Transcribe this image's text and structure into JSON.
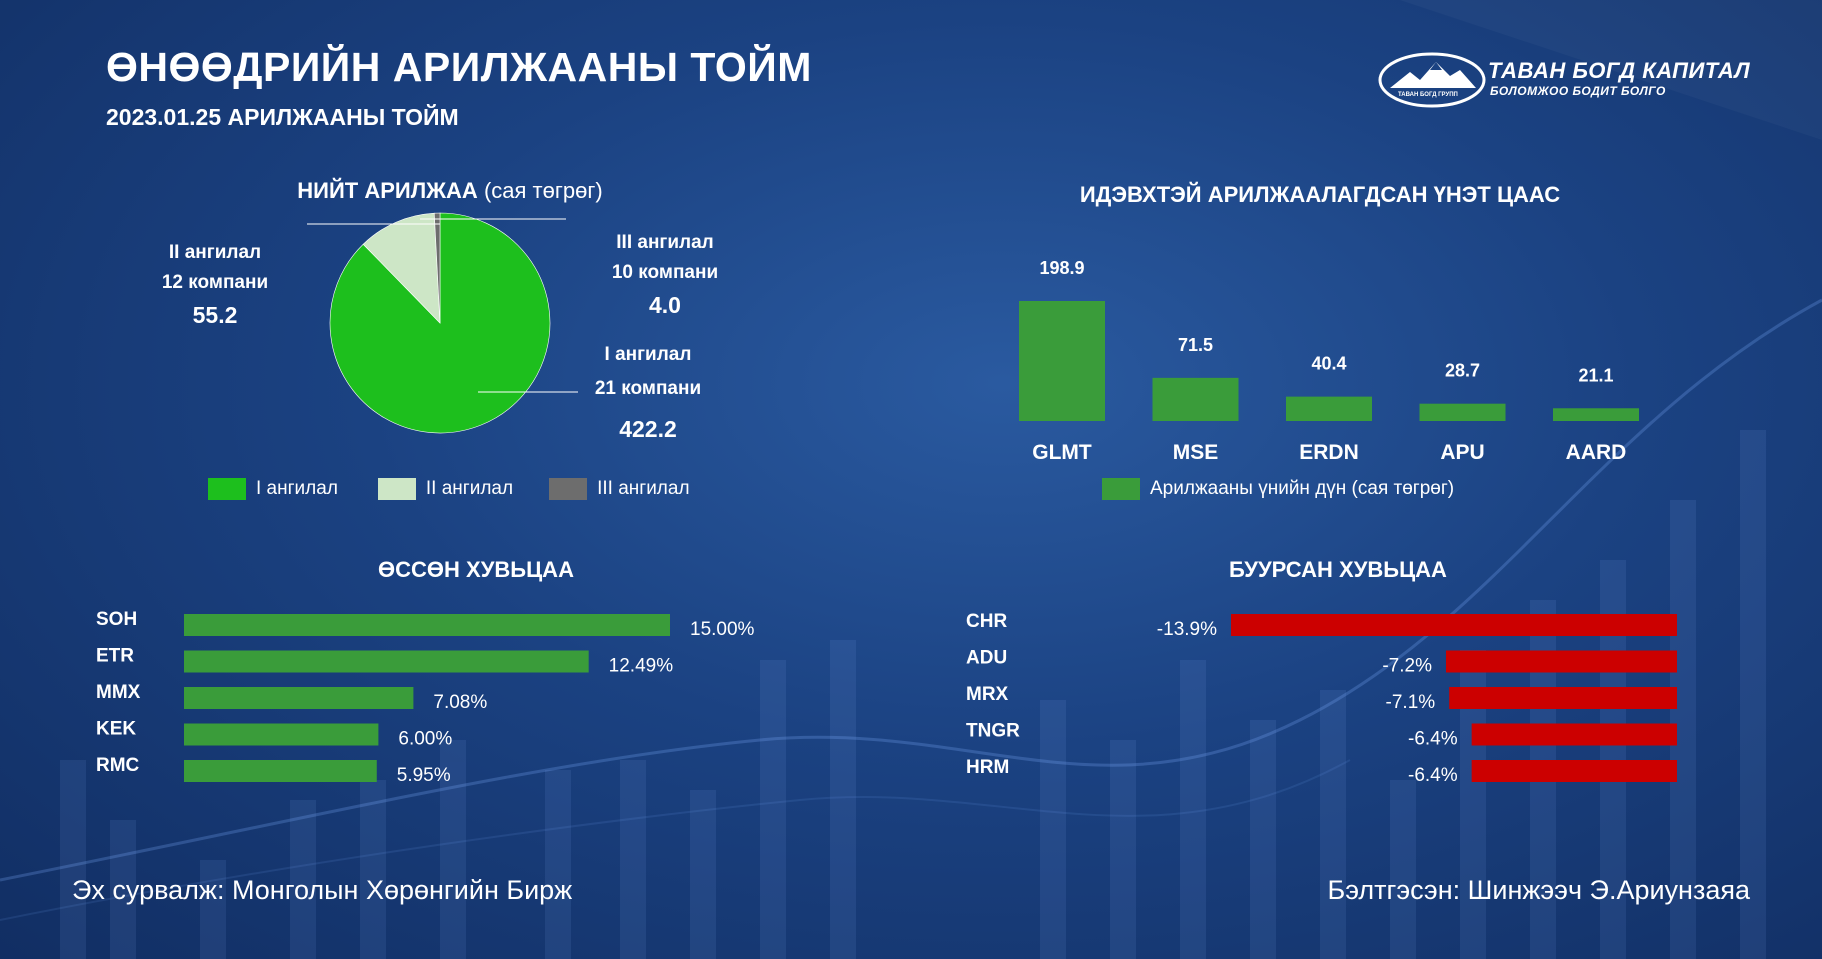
{
  "header": {
    "title": "ӨНӨӨДРИЙН АРИЛЖААНЫ ТОЙМ",
    "subtitle": "2023.01.25 АРИЛЖААНЫ ТОЙМ"
  },
  "logo": {
    "name": "ТАВАН БОГД КАПИТАЛ",
    "tagline": "БОЛОМЖОО БОДИТ БОЛГО",
    "emblem_text": "ТАВАН БОГД ГРУПП"
  },
  "colors": {
    "green": "#1dbf1d",
    "light_green": "#cde6c6",
    "gray": "#6d6d6d",
    "bar_green": "#3a9c3a",
    "red": "#cc0000"
  },
  "total_trading": {
    "title_bold": "НИЙТ АРИЛЖАА",
    "title_unit": "(сая төгрөг)",
    "slices": [
      {
        "label": "I ангилал",
        "companies": "21 компани",
        "value_text": "422.2"
      },
      {
        "label": "II ангилал",
        "companies": "12 компани",
        "value_text": "55.2"
      },
      {
        "label": "III ангилал",
        "companies": "10 компани",
        "value_text": "4.0"
      }
    ]
  },
  "active": {
    "title": "ИДЭВХТЭЙ АРИЛЖААЛАГДСАН ҮНЭТ ЦААС",
    "legend": "Арилжааны үнийн дүн (сая төгрөг)"
  },
  "gainers": {
    "title": "ӨССӨН ХУВЬЦАА"
  },
  "losers": {
    "title": "БУУРСАН ХУВЬЦАА"
  },
  "footer": {
    "source": "Эх сурвалж: Монголын Хөрөнгийн Бирж",
    "author": "Бэлтгэсэн: Шинжээч Э.Ариунзаяа"
  },
  "chart_data": [
    {
      "type": "pie",
      "categories": [
        "I ангилал",
        "II ангилал",
        "III ангилал"
      ],
      "values": [
        422.2,
        55.2,
        4.0
      ],
      "legend": "bottom",
      "title": "НИЙТ АРИЛЖАА (сая төгрөг)"
    },
    {
      "type": "bar",
      "categories": [
        "GLMT",
        "MSE",
        "ERDN",
        "APU",
        "AARD"
      ],
      "values": [
        198.9,
        71.5,
        40.4,
        28.7,
        21.1
      ],
      "value_labels": [
        "198.9",
        "71.5",
        "40.4",
        "28.7",
        "21.1"
      ],
      "series": [
        {
          "name": "Арилжааны үнийн дүн (сая төгрөг)",
          "values": [
            198.9,
            71.5,
            40.4,
            28.7,
            21.1
          ]
        }
      ],
      "legend": "bottom",
      "title": "ИДЭВХТЭЙ АРИЛЖААЛАГДСАН ҮНЭТ ЦААС"
    },
    {
      "type": "bar",
      "orientation": "horizontal",
      "categories": [
        "SOH",
        "ETR",
        "MMX",
        "KEK",
        "RMC"
      ],
      "values": [
        15.0,
        12.49,
        7.08,
        6.0,
        5.95
      ],
      "value_labels": [
        "15.00%",
        "12.49%",
        "7.08%",
        "6.00%",
        "5.95%"
      ],
      "title": "ӨССӨН ХУВЬЦАА"
    },
    {
      "type": "bar",
      "orientation": "horizontal",
      "categories": [
        "CHR",
        "ADU",
        "MRX",
        "TNGR",
        "HRM"
      ],
      "values": [
        -13.9,
        -7.2,
        -7.1,
        -6.4,
        -6.4
      ],
      "value_labels": [
        "-13.9%",
        "-7.2%",
        "-7.1%",
        "-6.4%",
        "-6.4%"
      ],
      "title": "БУУРСАН ХУВЬЦАА"
    }
  ]
}
